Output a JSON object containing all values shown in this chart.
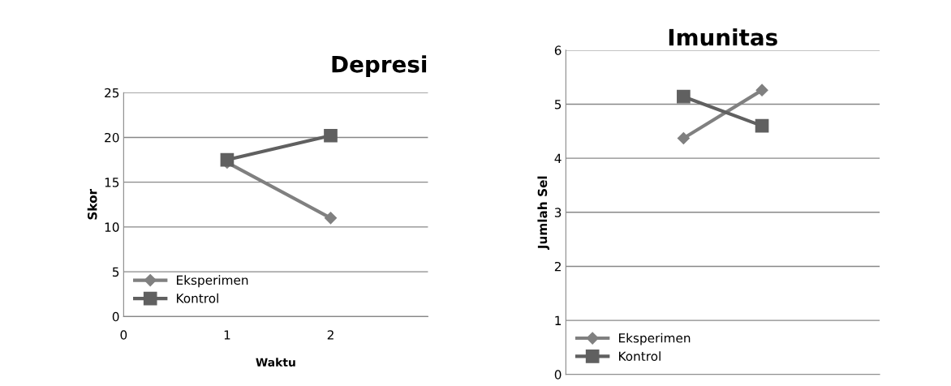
{
  "chart_data": [
    {
      "type": "line",
      "title": "Depresi",
      "xlabel": "Waktu",
      "ylabel": "Skor",
      "x": [
        1,
        2
      ],
      "xlim": [
        0,
        2.94
      ],
      "xticks": [
        0,
        1,
        2
      ],
      "ylim": [
        0,
        25
      ],
      "yticks": [
        0,
        5,
        10,
        15,
        20,
        25
      ],
      "grid": "y",
      "legend": "bottom left",
      "series": [
        {
          "name": "Eksperimen",
          "color": "#808080",
          "marker": "diamond",
          "values": [
            17.2,
            11.0
          ]
        },
        {
          "name": "Kontrol",
          "color": "#606060",
          "marker": "square",
          "values": [
            17.5,
            20.2
          ]
        }
      ]
    },
    {
      "type": "line",
      "title": "Imunitas",
      "ylabel": "Jumlah Sel",
      "categories": [
        null,
        null,
        null,
        null
      ],
      "ylim": [
        0,
        6
      ],
      "yticks": [
        0,
        1,
        2,
        3,
        4,
        5,
        6
      ],
      "grid": "y",
      "legend": "bottom left",
      "tick_labels": "y",
      "series": [
        {
          "name": "Eksperimen",
          "color": "#808080",
          "marker": "diamond",
          "values": [
            null,
            4.37,
            5.26,
            null
          ]
        },
        {
          "name": "Kontrol",
          "color": "#606060",
          "marker": "square",
          "values": [
            null,
            5.14,
            4.6,
            null
          ]
        }
      ]
    }
  ]
}
